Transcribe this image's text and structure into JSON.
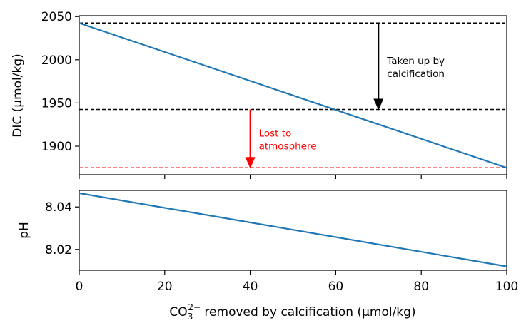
{
  "chart_data": [
    {
      "type": "line",
      "ylabel": "DIC (μmol/kg)",
      "xlim": [
        0,
        100
      ],
      "ylim": [
        1867,
        2051
      ],
      "yticks": [
        1900,
        1950,
        2000,
        2050
      ],
      "grid": false,
      "series": [
        {
          "x": [
            0,
            100
          ],
          "values": [
            2042.5,
            1875
          ],
          "color": "#1f77b4"
        }
      ],
      "hlines": [
        {
          "y": 2042.5,
          "color": "#000000",
          "style": "dashed"
        },
        {
          "y": 1942.5,
          "color": "#000000",
          "style": "dashed"
        },
        {
          "y": 1875,
          "color": "#ff0000",
          "style": "dashed"
        }
      ],
      "annotations": [
        {
          "x": 70,
          "y_from": 2042.5,
          "y_to": 1942.5,
          "line1": "Taken up by",
          "line2": "calcification",
          "color": "#000000"
        },
        {
          "x": 40,
          "y_from": 1942.5,
          "y_to": 1875,
          "line1": "Lost to",
          "line2": "atmosphere",
          "color": "#ff0000"
        }
      ]
    },
    {
      "type": "line",
      "xlabel_prefix": "CO",
      "xlabel_sub": "3",
      "xlabel_sup": "2−",
      "xlabel_rest": " removed by calcification (μmol/kg)",
      "ylabel": "pH",
      "xlim": [
        0,
        100
      ],
      "ylim": [
        8.0102,
        8.0478
      ],
      "xticks": [
        0,
        20,
        40,
        60,
        80,
        100
      ],
      "yticks": [
        8.02,
        8.04
      ],
      "ytick_labels": [
        "8.02",
        "8.04"
      ],
      "grid": false,
      "series": [
        {
          "x": [
            0,
            100
          ],
          "values": [
            8.0465,
            8.012
          ],
          "color": "#1f77b4"
        }
      ]
    }
  ]
}
